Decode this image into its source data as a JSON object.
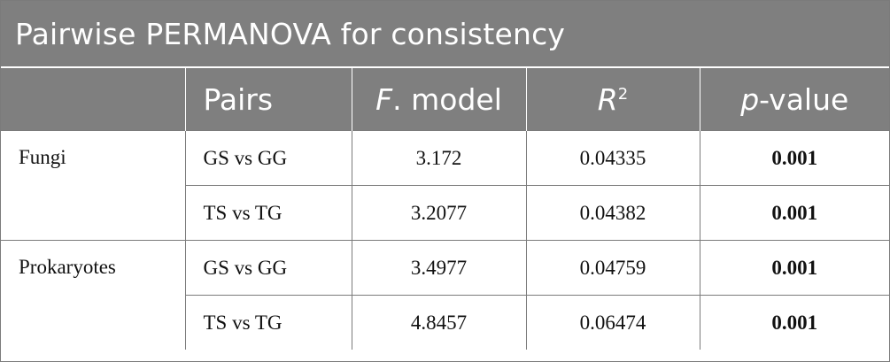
{
  "title": "Pairwise PERMANOVA for consistency",
  "columns": {
    "group": "",
    "pairs": "Pairs",
    "f_model_italic": "F",
    "f_model_rest": ". model",
    "r2_base": "R",
    "r2_sup": "2",
    "pvalue_italic": "p",
    "pvalue_rest": "-value"
  },
  "rows": [
    {
      "group": "Fungi",
      "pair": "GS vs GG",
      "f_model": "3.172",
      "r2": "0.04335",
      "p_value": "0.001"
    },
    {
      "group": "",
      "pair": "TS vs TG",
      "f_model": "3.2077",
      "r2": "0.04382",
      "p_value": "0.001"
    },
    {
      "group": "Prokaryotes",
      "pair": "GS vs GG",
      "f_model": "3.4977",
      "r2": "0.04759",
      "p_value": "0.001"
    },
    {
      "group": "",
      "pair": "TS vs TG",
      "f_model": "4.8457",
      "r2": "0.06474",
      "p_value": "0.001"
    }
  ]
}
